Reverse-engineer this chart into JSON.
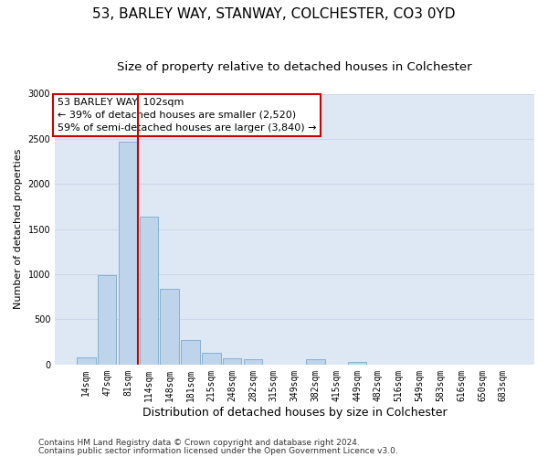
{
  "title_line1": "53, BARLEY WAY, STANWAY, COLCHESTER, CO3 0YD",
  "title_line2": "Size of property relative to detached houses in Colchester",
  "xlabel": "Distribution of detached houses by size in Colchester",
  "ylabel": "Number of detached properties",
  "categories": [
    "14sqm",
    "47sqm",
    "81sqm",
    "114sqm",
    "148sqm",
    "181sqm",
    "215sqm",
    "248sqm",
    "282sqm",
    "315sqm",
    "349sqm",
    "382sqm",
    "415sqm",
    "449sqm",
    "482sqm",
    "516sqm",
    "549sqm",
    "583sqm",
    "616sqm",
    "650sqm",
    "683sqm"
  ],
  "values": [
    75,
    990,
    2470,
    1640,
    840,
    270,
    130,
    65,
    55,
    0,
    0,
    55,
    0,
    30,
    0,
    0,
    0,
    0,
    0,
    0,
    0
  ],
  "bar_color": "#bdd4ea",
  "bar_edge_color": "#6d9fc5",
  "vline_x_index": 2,
  "vline_color": "#cc0000",
  "annotation_text": "53 BARLEY WAY: 102sqm\n← 39% of detached houses are smaller (2,520)\n59% of semi-detached houses are larger (3,840) →",
  "annotation_box_color": "#ffffff",
  "annotation_box_edge": "#cc0000",
  "ylim": [
    0,
    3000
  ],
  "yticks": [
    0,
    500,
    1000,
    1500,
    2000,
    2500,
    3000
  ],
  "grid_color": "#c8d4e8",
  "bg_color": "#dde8f4",
  "footer_line1": "Contains HM Land Registry data © Crown copyright and database right 2024.",
  "footer_line2": "Contains public sector information licensed under the Open Government Licence v3.0.",
  "title_fontsize": 11,
  "subtitle_fontsize": 9.5,
  "xlabel_fontsize": 9,
  "ylabel_fontsize": 8,
  "tick_fontsize": 7,
  "annotation_fontsize": 8,
  "footer_fontsize": 6.5
}
